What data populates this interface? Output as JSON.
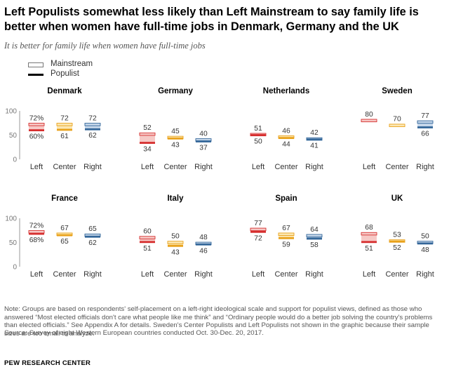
{
  "title": "Left Populists somewhat less likely than Left Mainstream to say family life is better when women have full-time jobs in Denmark, Germany and the UK",
  "subtitle": "It is better for family life when women have full-time jobs",
  "legend": {
    "mainstream": "Mainstream",
    "populist": "Populist"
  },
  "note": "Note: Groups are based on respondents' self-placement on a left-right ideological scale and support for populist views, defined as those who answered “Most elected officials don't care what people like me think” and “Ordinary people would do a better job solving the country's problems than elected officials.” See Appendix A for details. Sweden's Center Populists and Left Populists not shown in the graphic because their sample sizes are too small to analyze.",
  "source": "Source: Survey of eight Western European countries conducted Oct. 30-Dec. 20, 2017.",
  "footer": "PEW RESEARCH CENTER",
  "colors": {
    "Left": {
      "line": "#d62f2f",
      "fill": "#f6c9c6"
    },
    "Center": {
      "line": "#e9a21b",
      "fill": "#fbe7b3"
    },
    "Right": {
      "line": "#336699",
      "fill": "#c6d7ea"
    },
    "axis": "#999999",
    "grid": "#dddddd"
  },
  "chart_data": {
    "type": "range-bar",
    "ylim": [
      0,
      100
    ],
    "yticks": [
      0,
      50,
      100
    ],
    "categories": [
      "Left",
      "Center",
      "Right"
    ],
    "panels": [
      {
        "country": "Denmark",
        "values": [
          {
            "group": "Left",
            "mainstream": 72,
            "populist": 60,
            "mainstream_label": "72%",
            "populist_label": "60%"
          },
          {
            "group": "Center",
            "mainstream": 72,
            "populist": 61,
            "mainstream_label": "72",
            "populist_label": "61"
          },
          {
            "group": "Right",
            "mainstream": 72,
            "populist": 62,
            "mainstream_label": "72",
            "populist_label": "62"
          }
        ]
      },
      {
        "country": "Germany",
        "values": [
          {
            "group": "Left",
            "mainstream": 52,
            "populist": 34,
            "mainstream_label": "52",
            "populist_label": "34"
          },
          {
            "group": "Center",
            "mainstream": 45,
            "populist": 43,
            "mainstream_label": "45",
            "populist_label": "43"
          },
          {
            "group": "Right",
            "mainstream": 40,
            "populist": 37,
            "mainstream_label": "40",
            "populist_label": "37"
          }
        ]
      },
      {
        "country": "Netherlands",
        "values": [
          {
            "group": "Left",
            "mainstream": 51,
            "populist": 50,
            "mainstream_label": "51",
            "populist_label": "50"
          },
          {
            "group": "Center",
            "mainstream": 46,
            "populist": 44,
            "mainstream_label": "46",
            "populist_label": "44"
          },
          {
            "group": "Right",
            "mainstream": 42,
            "populist": 41,
            "mainstream_label": "42",
            "populist_label": "41"
          }
        ]
      },
      {
        "country": "Sweden",
        "values": [
          {
            "group": "Left",
            "mainstream": 80,
            "populist": null,
            "mainstream_label": "80",
            "populist_label": ""
          },
          {
            "group": "Center",
            "mainstream": 70,
            "populist": null,
            "mainstream_label": "70",
            "populist_label": ""
          },
          {
            "group": "Right",
            "mainstream": 77,
            "populist": 66,
            "mainstream_label": "77",
            "populist_label": "66"
          }
        ]
      },
      {
        "country": "France",
        "values": [
          {
            "group": "Left",
            "mainstream": 72,
            "populist": 68,
            "mainstream_label": "72%",
            "populist_label": "68%"
          },
          {
            "group": "Center",
            "mainstream": 67,
            "populist": 65,
            "mainstream_label": "67",
            "populist_label": "65"
          },
          {
            "group": "Right",
            "mainstream": 65,
            "populist": 62,
            "mainstream_label": "65",
            "populist_label": "62"
          }
        ]
      },
      {
        "country": "Italy",
        "values": [
          {
            "group": "Left",
            "mainstream": 60,
            "populist": 51,
            "mainstream_label": "60",
            "populist_label": "51"
          },
          {
            "group": "Center",
            "mainstream": 50,
            "populist": 43,
            "mainstream_label": "50",
            "populist_label": "43"
          },
          {
            "group": "Right",
            "mainstream": 48,
            "populist": 46,
            "mainstream_label": "48",
            "populist_label": "46"
          }
        ]
      },
      {
        "country": "Spain",
        "values": [
          {
            "group": "Left",
            "mainstream": 77,
            "populist": 72,
            "mainstream_label": "77",
            "populist_label": "72"
          },
          {
            "group": "Center",
            "mainstream": 67,
            "populist": 59,
            "mainstream_label": "67",
            "populist_label": "59"
          },
          {
            "group": "Right",
            "mainstream": 64,
            "populist": 58,
            "mainstream_label": "64",
            "populist_label": "58"
          }
        ]
      },
      {
        "country": "UK",
        "values": [
          {
            "group": "Left",
            "mainstream": 68,
            "populist": 51,
            "mainstream_label": "68",
            "populist_label": "51"
          },
          {
            "group": "Center",
            "mainstream": 53,
            "populist": 52,
            "mainstream_label": "53",
            "populist_label": "52"
          },
          {
            "group": "Right",
            "mainstream": 50,
            "populist": 48,
            "mainstream_label": "50",
            "populist_label": "48"
          }
        ]
      }
    ]
  }
}
